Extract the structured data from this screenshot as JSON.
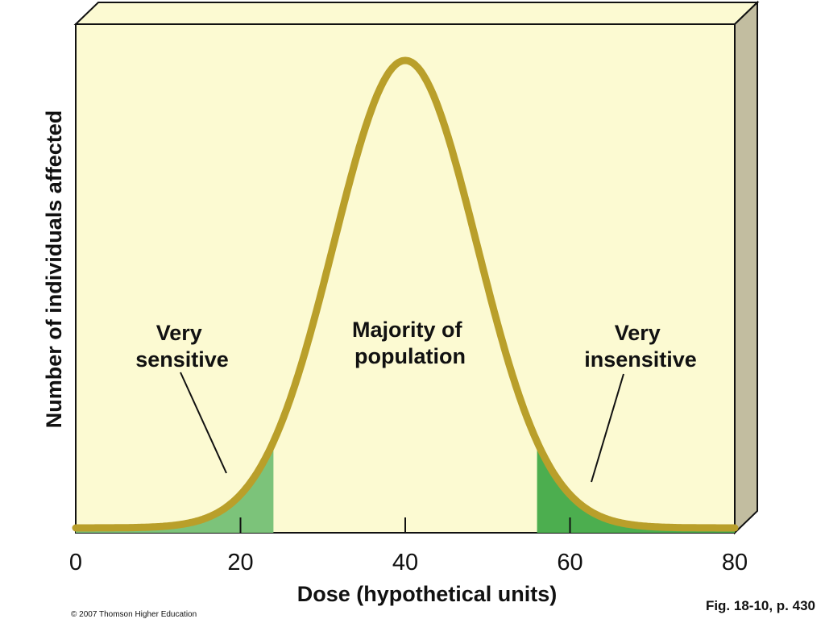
{
  "chart_data": {
    "type": "area",
    "title": "",
    "xlabel": "Dose (hypothetical units)",
    "ylabel": "Number of individuals affected",
    "xlim": [
      0,
      80
    ],
    "x_ticks": [
      0,
      20,
      40,
      60,
      80
    ],
    "x_tick_labels": [
      "0",
      "20",
      "40",
      "60",
      "80"
    ],
    "grid": false,
    "legend": "none",
    "curve": {
      "shape": "normal distribution",
      "mean": 40,
      "sd": 8.7
    },
    "shaded_regions": [
      {
        "x_range": [
          0,
          24
        ],
        "color": "#7cc37a"
      },
      {
        "x_range": [
          56,
          80
        ],
        "color": "#4cae4f"
      }
    ],
    "annotations": [
      {
        "name": "very-sensitive",
        "lines": [
          "Very",
          "sensitive"
        ]
      },
      {
        "name": "majority",
        "lines": [
          "Majority of",
          "population"
        ]
      },
      {
        "name": "very-insensitive",
        "lines": [
          "Very",
          "insensitive"
        ]
      }
    ]
  },
  "colors": {
    "panel_face": "#fcfad2",
    "panel_side": "#c2bda0",
    "curve": "#b99f2a",
    "outline": "#111111"
  },
  "footer": {
    "copyright": "© 2007 Thomson Higher Education",
    "figure_ref": "Fig. 18-10, p. 430"
  }
}
